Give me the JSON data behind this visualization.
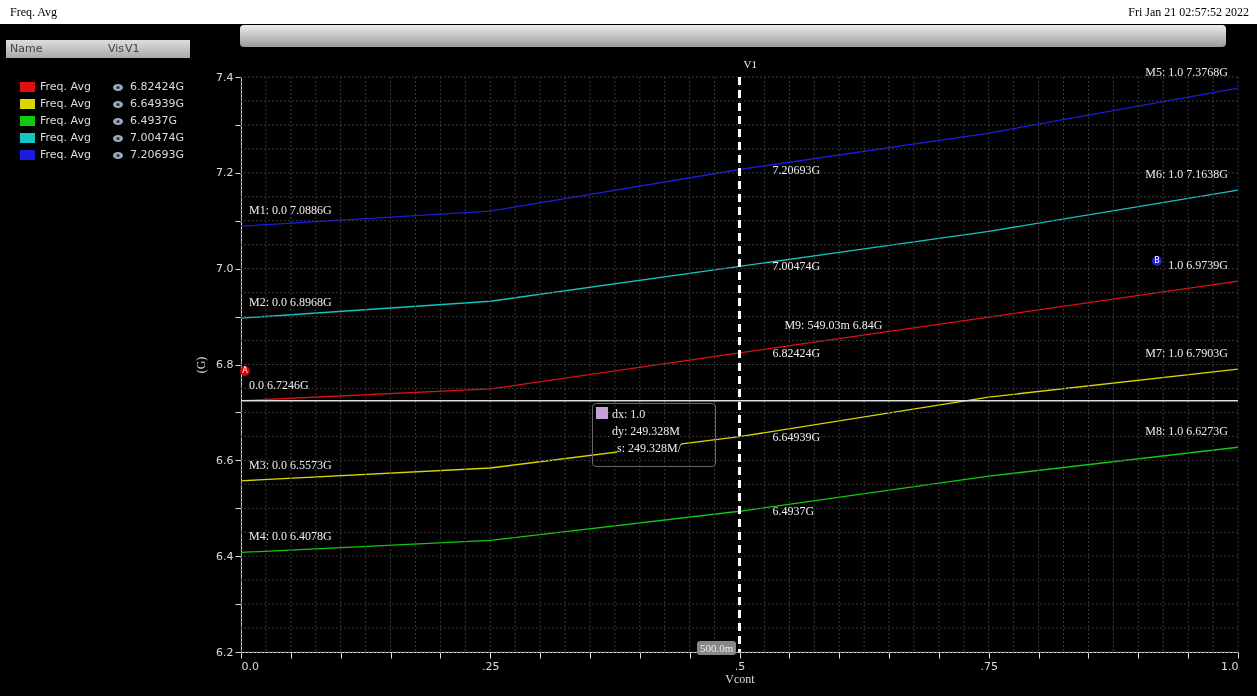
{
  "chart_data": {
    "type": "line",
    "title": "Freq. Avg",
    "subtitle": "Fri Jan 21 02:57:52 2022",
    "xlabel": "Vcont",
    "ylabel": "(G)",
    "x": [
      0,
      0.25,
      0.5,
      0.75,
      1
    ],
    "series": [
      {
        "name": "Freq. Avg",
        "color": "#e01010",
        "values": [
          6.7246,
          6.749,
          6.82424,
          6.899,
          6.9739
        ]
      },
      {
        "name": "Freq. Avg",
        "color": "#d8d800",
        "values": [
          6.5573,
          6.584,
          6.64939,
          6.732,
          6.7903
        ]
      },
      {
        "name": "Freq. Avg",
        "color": "#12c812",
        "values": [
          6.4078,
          6.433,
          6.4937,
          6.567,
          6.6273
        ]
      },
      {
        "name": "Freq. Avg",
        "color": "#12c4c4",
        "values": [
          6.8968,
          6.932,
          7.00474,
          7.078,
          7.1638
        ]
      },
      {
        "name": "Freq. Avg",
        "color": "#1c1ce0",
        "values": [
          7.0886,
          7.12,
          7.20693,
          7.283,
          7.3768
        ]
      }
    ],
    "xlim": [
      0,
      1
    ],
    "xticks": [
      {
        "value": 0,
        "label": "0.0"
      },
      {
        "value": 0.025,
        "label": null
      },
      {
        "value": 0.05,
        "label": null
      },
      {
        "value": 0.075,
        "label": null
      },
      {
        "value": 0.1,
        "label": null
      },
      {
        "value": 0.125,
        "label": null
      },
      {
        "value": 0.15,
        "label": null
      },
      {
        "value": 0.175,
        "label": null
      },
      {
        "value": 0.2,
        "label": null
      },
      {
        "value": 0.225,
        "label": null
      },
      {
        "value": 0.25,
        "label": ".25"
      },
      {
        "value": 0.275,
        "label": null
      },
      {
        "value": 0.3,
        "label": null
      },
      {
        "value": 0.325,
        "label": null
      },
      {
        "value": 0.35,
        "label": null
      },
      {
        "value": 0.375,
        "label": null
      },
      {
        "value": 0.4,
        "label": null
      },
      {
        "value": 0.425,
        "label": null
      },
      {
        "value": 0.45,
        "label": null
      },
      {
        "value": 0.475,
        "label": null
      },
      {
        "value": 0.5,
        "label": ".5"
      },
      {
        "value": 0.525,
        "label": null
      },
      {
        "value": 0.55,
        "label": null
      },
      {
        "value": 0.575,
        "label": null
      },
      {
        "value": 0.6,
        "label": null
      },
      {
        "value": 0.625,
        "label": null
      },
      {
        "value": 0.65,
        "label": null
      },
      {
        "value": 0.675,
        "label": null
      },
      {
        "value": 0.7,
        "label": null
      },
      {
        "value": 0.725,
        "label": null
      },
      {
        "value": 0.75,
        "label": ".75"
      },
      {
        "value": 0.775,
        "label": null
      },
      {
        "value": 0.8,
        "label": null
      },
      {
        "value": 0.825,
        "label": null
      },
      {
        "value": 0.85,
        "label": null
      },
      {
        "value": 0.875,
        "label": null
      },
      {
        "value": 0.9,
        "label": null
      },
      {
        "value": 0.925,
        "label": null
      },
      {
        "value": 0.95,
        "label": null
      },
      {
        "value": 0.975,
        "label": null
      },
      {
        "value": 1,
        "label": "1.0"
      }
    ],
    "ylim": [
      6.2,
      7.4
    ],
    "yticks": [
      6.2,
      {
        "value": 6.25,
        "label": null
      },
      {
        "value": 6.3,
        "label": null
      },
      {
        "value": 6.35,
        "label": null
      },
      6.4,
      {
        "value": 6.45,
        "label": null
      },
      {
        "value": 6.5,
        "label": null
      },
      {
        "value": 6.55,
        "label": null
      },
      6.6,
      {
        "value": 6.65,
        "label": null
      },
      {
        "value": 6.7,
        "label": null
      },
      {
        "value": 6.75,
        "label": null
      },
      6.8,
      {
        "value": 6.85,
        "label": null
      },
      {
        "value": 6.9,
        "label": null
      },
      {
        "value": 6.95,
        "label": null
      },
      {
        "value": 7,
        "label": "7.0"
      },
      {
        "value": 7.05,
        "label": null
      },
      {
        "value": 7.1,
        "label": null
      },
      {
        "value": 7.15,
        "label": null
      },
      7.2,
      {
        "value": 7.25,
        "label": null
      },
      {
        "value": 7.3,
        "label": null
      },
      {
        "value": 7.35,
        "label": null
      },
      7.4
    ],
    "grid": true,
    "legend": "left",
    "line_style": "solid",
    "ref_lines": [
      {
        "axis": "x",
        "value": 0.5,
        "label": "V1",
        "color": "#ffffff",
        "line_style": "dashed"
      },
      {
        "axis": "y",
        "value": 6.7246,
        "label": null,
        "color": "#dddddd",
        "line_style": "solid"
      }
    ],
    "annotations": [
      {
        "text": "M1: 0.0 7.0886G",
        "x": 0,
        "y": 7.0886
      },
      {
        "text": "M2: 0.0 6.8968G",
        "x": 0,
        "y": 6.8968
      },
      {
        "text": "0.0 6.7246G",
        "x": 0,
        "y": 6.7246
      },
      {
        "text": "M3: 0.0 6.5573G",
        "x": 0,
        "y": 6.5573
      },
      {
        "text": "M4: 0.0 6.4078G",
        "x": 0,
        "y": 6.4078
      },
      {
        "text": "M5: 1.0 7.3768G",
        "x": 1,
        "y": 7.3768
      },
      {
        "text": "M6: 1.0 7.1638G",
        "x": 1,
        "y": 7.1638
      },
      {
        "text": "1.0 6.9739G",
        "x": 1,
        "y": 6.9739
      },
      {
        "text": "M7: 1.0 6.7903G",
        "x": 1,
        "y": 6.7903
      },
      {
        "text": "M8: 1.0 6.6273G",
        "x": 1,
        "y": 6.6273
      },
      {
        "text": "M9: 549.03m 6.84G",
        "x": 0.54903,
        "y": 6.84
      },
      {
        "text": "7.20693G",
        "x": 0.5,
        "y": 7.20693
      },
      {
        "text": "7.00474G",
        "x": 0.5,
        "y": 7.00474
      },
      {
        "text": "6.82424G",
        "x": 0.5,
        "y": 6.82424
      },
      {
        "text": "6.64939G",
        "x": 0.5,
        "y": 6.64939
      },
      {
        "text": "6.4937G",
        "x": 0.5,
        "y": 6.4937
      },
      "Name",
      "Vis",
      "V1",
      "6.82424G",
      "6.64939G",
      "6.4937G",
      "7.00474G",
      "7.20693G",
      "dx: 1.0",
      "dy: 249.328M",
      "s: 249.328M/",
      "500.0m",
      "A",
      "B"
    ]
  }
}
